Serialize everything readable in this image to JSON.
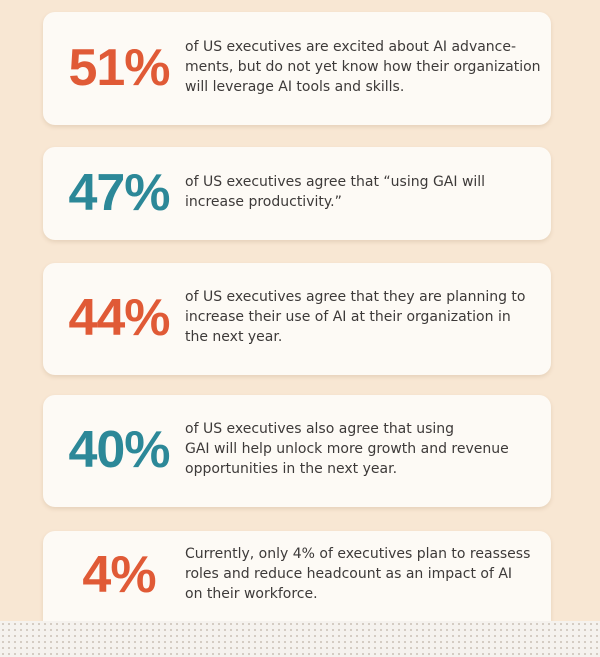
{
  "cards": [
    {
      "stat": "51%",
      "lines": [
        "of US executives are excited about AI advance-",
        "ments, but do not yet know how their organization",
        "will leverage AI tools and skills."
      ]
    },
    {
      "stat": "47%",
      "lines": [
        "of US executives agree that “using GAI will",
        "increase productivity.”"
      ]
    },
    {
      "stat": "44%",
      "lines": [
        "of US executives agree that they are planning to",
        "increase their use of AI at their organization in",
        "the next year."
      ]
    },
    {
      "stat": "40%",
      "lines": [
        "of US executives also agree that using",
        "GAI will help unlock more growth and revenue",
        "opportunities in the next year."
      ]
    },
    {
      "stat": "4%",
      "lines": [
        "Currently, only 4% of executives plan to reassess",
        "roles and reduce headcount as an impact of AI",
        "on their workforce."
      ]
    }
  ]
}
